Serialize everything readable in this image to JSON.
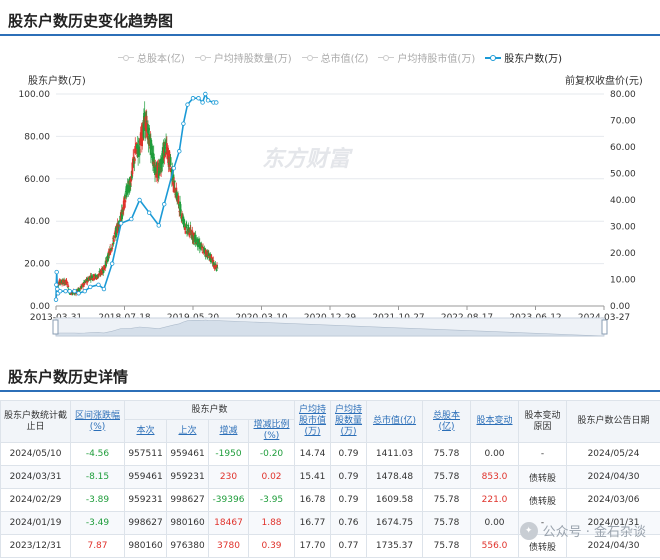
{
  "chart_section": {
    "title": "股东户数历史变化趋势图"
  },
  "legend": {
    "items": [
      {
        "label": "总股本(亿)",
        "active": false
      },
      {
        "label": "户均持股数量(万)",
        "active": false
      },
      {
        "label": "总市值(亿)",
        "active": false
      },
      {
        "label": "户均持股市值(万)",
        "active": false
      },
      {
        "label": "股东户数(万)",
        "active": true
      }
    ]
  },
  "colors": {
    "accent": "#2c6fb8",
    "holders_line": "#1b9ad6",
    "candle_up": "#e0322b",
    "candle_down": "#1f9d3b",
    "price_close": "#333333"
  },
  "watermark_text": "东方财富",
  "chart_data": {
    "type": "line",
    "left_axis_label": "股东户数(万)",
    "right_axis_label": "前复权收盘价(元)",
    "y_left_ticks": [
      "100.00",
      "80.00",
      "60.00",
      "40.00",
      "20.00",
      "0.00"
    ],
    "y_right_ticks": [
      "80.00",
      "70.00",
      "60.00",
      "50.00",
      "40.00",
      "30.00",
      "20.00",
      "10.00",
      "0.00"
    ],
    "ylim_left": [
      0,
      100
    ],
    "ylim_right": [
      0,
      80
    ],
    "x_ticks": [
      "2013-03-31",
      "2018-07-18",
      "2019-05-20",
      "2020-03-10",
      "2020-12-29",
      "2021-10-27",
      "2022-08-17",
      "2023-06-12",
      "2024-03-27"
    ],
    "grid": true,
    "series": [
      {
        "name": "股东户数(万)",
        "axis": "left",
        "points": [
          [
            0.0,
            3
          ],
          [
            0.005,
            10
          ],
          [
            0.01,
            16
          ],
          [
            0.02,
            8
          ],
          [
            0.03,
            6
          ],
          [
            0.06,
            7
          ],
          [
            0.14,
            7
          ],
          [
            0.2,
            7
          ],
          [
            0.27,
            7
          ],
          [
            0.33,
            6
          ],
          [
            0.42,
            7
          ],
          [
            0.5,
            9
          ],
          [
            0.62,
            10
          ],
          [
            0.7,
            8
          ],
          [
            0.82,
            20
          ],
          [
            0.95,
            39
          ],
          [
            1.1,
            41
          ],
          [
            1.22,
            50
          ],
          [
            1.36,
            44
          ],
          [
            1.5,
            38
          ],
          [
            1.58,
            48
          ],
          [
            1.72,
            65
          ],
          [
            1.8,
            73
          ],
          [
            1.86,
            86
          ],
          [
            1.92,
            95
          ],
          [
            2.0,
            98
          ],
          [
            2.08,
            98
          ],
          [
            2.14,
            96
          ],
          [
            2.18,
            100
          ],
          [
            2.22,
            97
          ],
          [
            2.3,
            96
          ],
          [
            2.34,
            96
          ]
        ]
      }
    ],
    "price": {
      "axis": "right",
      "points": [
        [
          0.0,
          2
        ],
        [
          0.01,
          4
        ],
        [
          0.02,
          8
        ],
        [
          0.05,
          9
        ],
        [
          0.1,
          9
        ],
        [
          0.16,
          9
        ],
        [
          0.2,
          5
        ],
        [
          0.27,
          5
        ],
        [
          0.33,
          6
        ],
        [
          0.4,
          8
        ],
        [
          0.5,
          11
        ],
        [
          0.6,
          11
        ],
        [
          0.7,
          14
        ],
        [
          0.82,
          23
        ],
        [
          0.9,
          30
        ],
        [
          0.97,
          35
        ],
        [
          1.02,
          42
        ],
        [
          1.08,
          46
        ],
        [
          1.12,
          52
        ],
        [
          1.16,
          58
        ],
        [
          1.22,
          60
        ],
        [
          1.26,
          65
        ],
        [
          1.3,
          70
        ],
        [
          1.34,
          66
        ],
        [
          1.4,
          58
        ],
        [
          1.45,
          52
        ],
        [
          1.5,
          50
        ],
        [
          1.55,
          56
        ],
        [
          1.6,
          60
        ],
        [
          1.66,
          55
        ],
        [
          1.72,
          46
        ],
        [
          1.78,
          40
        ],
        [
          1.84,
          34
        ],
        [
          1.9,
          29
        ],
        [
          1.96,
          28
        ],
        [
          2.04,
          25
        ],
        [
          2.12,
          22
        ],
        [
          2.2,
          20
        ],
        [
          2.26,
          18
        ],
        [
          2.32,
          15
        ],
        [
          2.36,
          14
        ]
      ]
    }
  },
  "table_section": {
    "title": "股东户数历史详情",
    "headers": {
      "date": "股东户数统计截止日",
      "range_change": "区间涨跌幅(%)",
      "holders_group": "股东户数",
      "current": "本次",
      "previous": "上次",
      "change": "增减",
      "change_ratio": "增减比例(%)",
      "avg_value": "户均持股市值(万)",
      "avg_shares": "户均持股数量(万)",
      "market_cap": "总市值(亿)",
      "total_shares": "总股本(亿)",
      "share_change": "股本变动",
      "change_reason": "股本变动原因",
      "announce_date": "股东户数公告日期"
    },
    "rows": [
      {
        "date": "2024/05/10",
        "range": "-4.56",
        "range_dir": "down",
        "current": "957511",
        "previous": "959461",
        "change": "-1950",
        "change_dir": "down",
        "ratio": "-0.20",
        "ratio_dir": "down",
        "avg_value": "14.74",
        "avg_shares": "0.79",
        "cap": "1411.03",
        "shares": "75.78",
        "share_change": "0.00",
        "share_change_dir": "",
        "reason": "-",
        "announce": "2024/05/24"
      },
      {
        "date": "2024/03/31",
        "range": "-8.15",
        "range_dir": "down",
        "current": "959461",
        "previous": "959231",
        "change": "230",
        "change_dir": "up",
        "ratio": "0.02",
        "ratio_dir": "up",
        "avg_value": "15.41",
        "avg_shares": "0.79",
        "cap": "1478.48",
        "shares": "75.78",
        "share_change": "853.0",
        "share_change_dir": "up",
        "reason": "债转股",
        "announce": "2024/04/30"
      },
      {
        "date": "2024/02/29",
        "range": "-3.89",
        "range_dir": "down",
        "current": "959231",
        "previous": "998627",
        "change": "-39396",
        "change_dir": "down",
        "ratio": "-3.95",
        "ratio_dir": "down",
        "avg_value": "16.78",
        "avg_shares": "0.79",
        "cap": "1609.58",
        "shares": "75.78",
        "share_change": "221.0",
        "share_change_dir": "up",
        "reason": "债转股",
        "announce": "2024/03/06"
      },
      {
        "date": "2024/01/19",
        "range": "-3.49",
        "range_dir": "down",
        "current": "998627",
        "previous": "980160",
        "change": "18467",
        "change_dir": "up",
        "ratio": "1.88",
        "ratio_dir": "up",
        "avg_value": "16.77",
        "avg_shares": "0.76",
        "cap": "1674.75",
        "shares": "75.78",
        "share_change": "0.00",
        "share_change_dir": "",
        "reason": "-",
        "announce": "2024/01/31"
      },
      {
        "date": "2023/12/31",
        "range": "7.87",
        "range_dir": "up",
        "current": "980160",
        "previous": "976380",
        "change": "3780",
        "change_dir": "up",
        "ratio": "0.39",
        "ratio_dir": "up",
        "avg_value": "17.70",
        "avg_shares": "0.77",
        "cap": "1735.37",
        "shares": "75.78",
        "share_change": "556.0",
        "share_change_dir": "up",
        "reason": "债转股",
        "announce": "2024/04/30"
      }
    ]
  },
  "footer_watermark": "公众号 · 金石杂谈"
}
